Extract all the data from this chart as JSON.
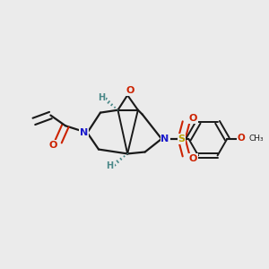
{
  "bg_color": "#ebebeb",
  "bond_color": "#1a1a1a",
  "N_color": "#1a1acc",
  "O_color": "#cc2200",
  "S_color": "#b8a000",
  "H_color": "#4a8888",
  "figsize": [
    3.0,
    3.0
  ],
  "dpi": 100,
  "xlim": [
    0,
    3.0
  ],
  "ylim": [
    0,
    3.0
  ]
}
